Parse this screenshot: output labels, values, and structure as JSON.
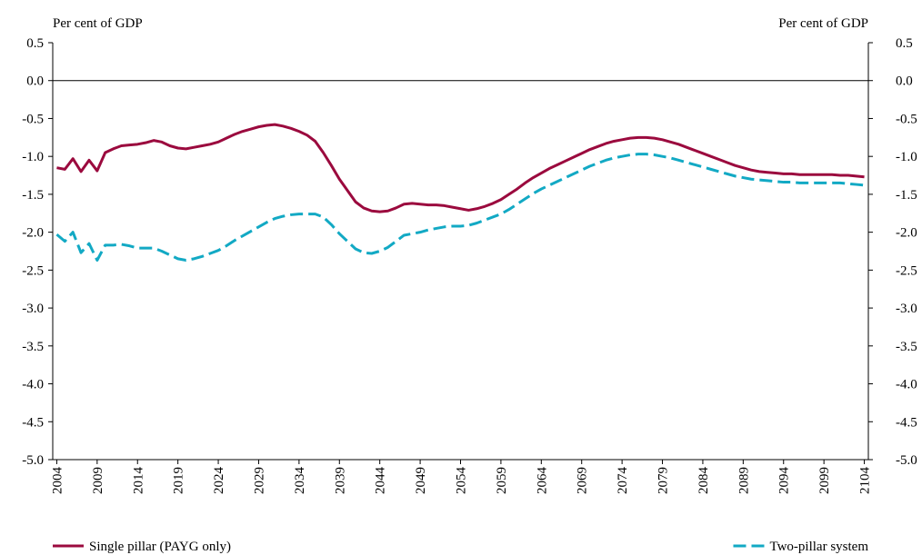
{
  "chart_data": {
    "type": "line",
    "y_label": "Per cent of GDP",
    "y2_label": "Per cent of GDP",
    "x": [
      2004,
      2005,
      2006,
      2007,
      2008,
      2009,
      2010,
      2011,
      2012,
      2013,
      2014,
      2015,
      2016,
      2017,
      2018,
      2019,
      2020,
      2021,
      2022,
      2023,
      2024,
      2025,
      2026,
      2027,
      2028,
      2029,
      2030,
      2031,
      2032,
      2033,
      2034,
      2035,
      2036,
      2037,
      2038,
      2039,
      2040,
      2041,
      2042,
      2043,
      2044,
      2045,
      2046,
      2047,
      2048,
      2049,
      2050,
      2051,
      2052,
      2053,
      2054,
      2055,
      2056,
      2057,
      2058,
      2059,
      2060,
      2061,
      2062,
      2063,
      2064,
      2065,
      2066,
      2067,
      2068,
      2069,
      2070,
      2071,
      2072,
      2073,
      2074,
      2075,
      2076,
      2077,
      2078,
      2079,
      2080,
      2081,
      2082,
      2083,
      2084,
      2085,
      2086,
      2087,
      2088,
      2089,
      2090,
      2091,
      2092,
      2093,
      2094,
      2095,
      2096,
      2097,
      2098,
      2099,
      2100,
      2101,
      2102,
      2103,
      2104
    ],
    "xlim": [
      2003.5,
      2104.5
    ],
    "xticks": [
      2004,
      2009,
      2014,
      2019,
      2024,
      2029,
      2034,
      2039,
      2044,
      2049,
      2054,
      2059,
      2064,
      2069,
      2074,
      2079,
      2084,
      2089,
      2094,
      2099,
      2104
    ],
    "ylim": [
      -5.0,
      0.5
    ],
    "yticks": [
      0.5,
      {
        "value": 0,
        "label": "0.0"
      },
      -0.5,
      {
        "value": -1,
        "label": "-1.0"
      },
      -1.5,
      {
        "value": -2,
        "label": "-2.0"
      },
      -2.5,
      {
        "value": -3,
        "label": "-3.0"
      },
      -3.5,
      {
        "value": -4,
        "label": "-4.0"
      },
      -4.5,
      {
        "value": -5,
        "label": "-5.0"
      }
    ],
    "y2lim": [
      -5.0,
      0.5
    ],
    "y2ticks": [
      0.5,
      {
        "value": 0,
        "label": "0.0"
      },
      -0.5,
      {
        "value": -1,
        "label": "-1.0"
      },
      -1.5,
      {
        "value": -2,
        "label": "-2.0"
      },
      -2.5,
      {
        "value": -3,
        "label": "-3.0"
      },
      -3.5,
      {
        "value": -4,
        "label": "-4.0"
      },
      -4.5,
      {
        "value": -5,
        "label": "-5.0"
      }
    ],
    "grid": false,
    "legend": "bottom",
    "series": [
      {
        "name": "Single pillar (PAYG only)",
        "color": "#9b0a3e",
        "dash": false,
        "values": [
          -1.15,
          -1.17,
          -1.03,
          -1.2,
          -1.05,
          -1.19,
          -0.95,
          -0.9,
          -0.86,
          -0.85,
          -0.84,
          -0.82,
          -0.79,
          -0.81,
          -0.86,
          -0.89,
          -0.9,
          -0.88,
          -0.86,
          -0.84,
          -0.81,
          -0.76,
          -0.71,
          -0.67,
          -0.64,
          -0.61,
          -0.59,
          -0.58,
          -0.6,
          -0.63,
          -0.67,
          -0.72,
          -0.8,
          -0.95,
          -1.12,
          -1.3,
          -1.45,
          -1.6,
          -1.68,
          -1.72,
          -1.73,
          -1.72,
          -1.68,
          -1.63,
          -1.62,
          -1.63,
          -1.64,
          -1.64,
          -1.65,
          -1.67,
          -1.69,
          -1.71,
          -1.69,
          -1.66,
          -1.62,
          -1.57,
          -1.5,
          -1.43,
          -1.35,
          -1.28,
          -1.22,
          -1.16,
          -1.11,
          -1.06,
          -1.01,
          -0.96,
          -0.91,
          -0.87,
          -0.83,
          -0.8,
          -0.78,
          -0.76,
          -0.75,
          -0.75,
          -0.76,
          -0.78,
          -0.81,
          -0.84,
          -0.88,
          -0.92,
          -0.96,
          -1.0,
          -1.04,
          -1.08,
          -1.12,
          -1.15,
          -1.18,
          -1.2,
          -1.21,
          -1.22,
          -1.23,
          -1.23,
          -1.24,
          -1.24,
          -1.24,
          -1.24,
          -1.24,
          -1.25,
          -1.25,
          -1.26,
          -1.27
        ]
      },
      {
        "name": "Two-pillar system",
        "color": "#12a9c4",
        "dash": true,
        "values": [
          -2.03,
          -2.12,
          -2.0,
          -2.27,
          -2.15,
          -2.37,
          -2.17,
          -2.17,
          -2.16,
          -2.18,
          -2.21,
          -2.21,
          -2.21,
          -2.25,
          -2.3,
          -2.35,
          -2.37,
          -2.35,
          -2.32,
          -2.28,
          -2.24,
          -2.18,
          -2.11,
          -2.05,
          -1.99,
          -1.93,
          -1.87,
          -1.82,
          -1.79,
          -1.77,
          -1.76,
          -1.76,
          -1.76,
          -1.8,
          -1.9,
          -2.02,
          -2.12,
          -2.22,
          -2.27,
          -2.28,
          -2.25,
          -2.2,
          -2.12,
          -2.04,
          -2.02,
          -2.0,
          -1.97,
          -1.95,
          -1.93,
          -1.92,
          -1.92,
          -1.91,
          -1.88,
          -1.84,
          -1.8,
          -1.76,
          -1.7,
          -1.63,
          -1.56,
          -1.49,
          -1.43,
          -1.38,
          -1.33,
          -1.28,
          -1.23,
          -1.18,
          -1.13,
          -1.09,
          -1.05,
          -1.02,
          -1.0,
          -0.98,
          -0.97,
          -0.97,
          -0.98,
          -1.0,
          -1.02,
          -1.05,
          -1.08,
          -1.11,
          -1.14,
          -1.17,
          -1.2,
          -1.23,
          -1.26,
          -1.28,
          -1.3,
          -1.31,
          -1.32,
          -1.33,
          -1.34,
          -1.34,
          -1.35,
          -1.35,
          -1.35,
          -1.35,
          -1.35,
          -1.35,
          -1.36,
          -1.37,
          -1.38
        ]
      }
    ]
  }
}
